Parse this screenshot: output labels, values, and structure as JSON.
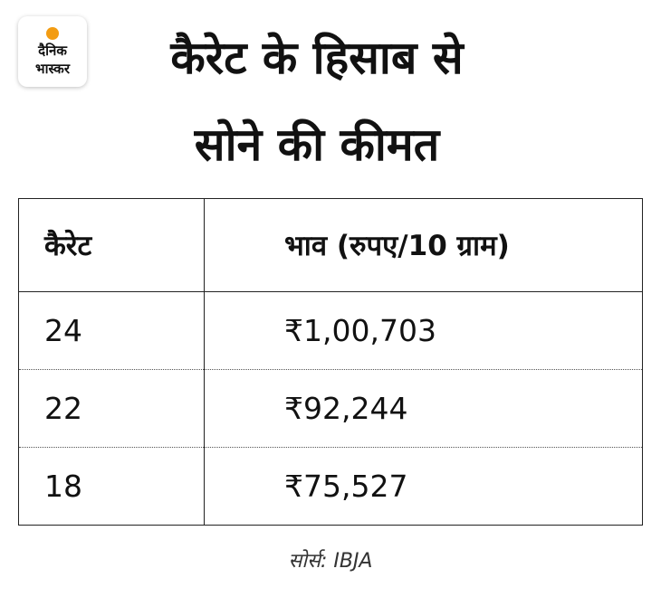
{
  "logo": {
    "line1": "दैनिक",
    "line2": "भास्कर"
  },
  "header": {
    "title_line1": "कैरेट के हिसाब से",
    "title_line2": "सोने की कीमत"
  },
  "table": {
    "columns": [
      "कैरेट",
      "भाव (रुपए/10 ग्राम)"
    ],
    "rows": [
      [
        "24",
        "₹1,00,703"
      ],
      [
        "22",
        "₹92,244"
      ],
      [
        "18",
        "₹75,527"
      ]
    ]
  },
  "footer": {
    "source": "सोर्स: IBJA"
  }
}
